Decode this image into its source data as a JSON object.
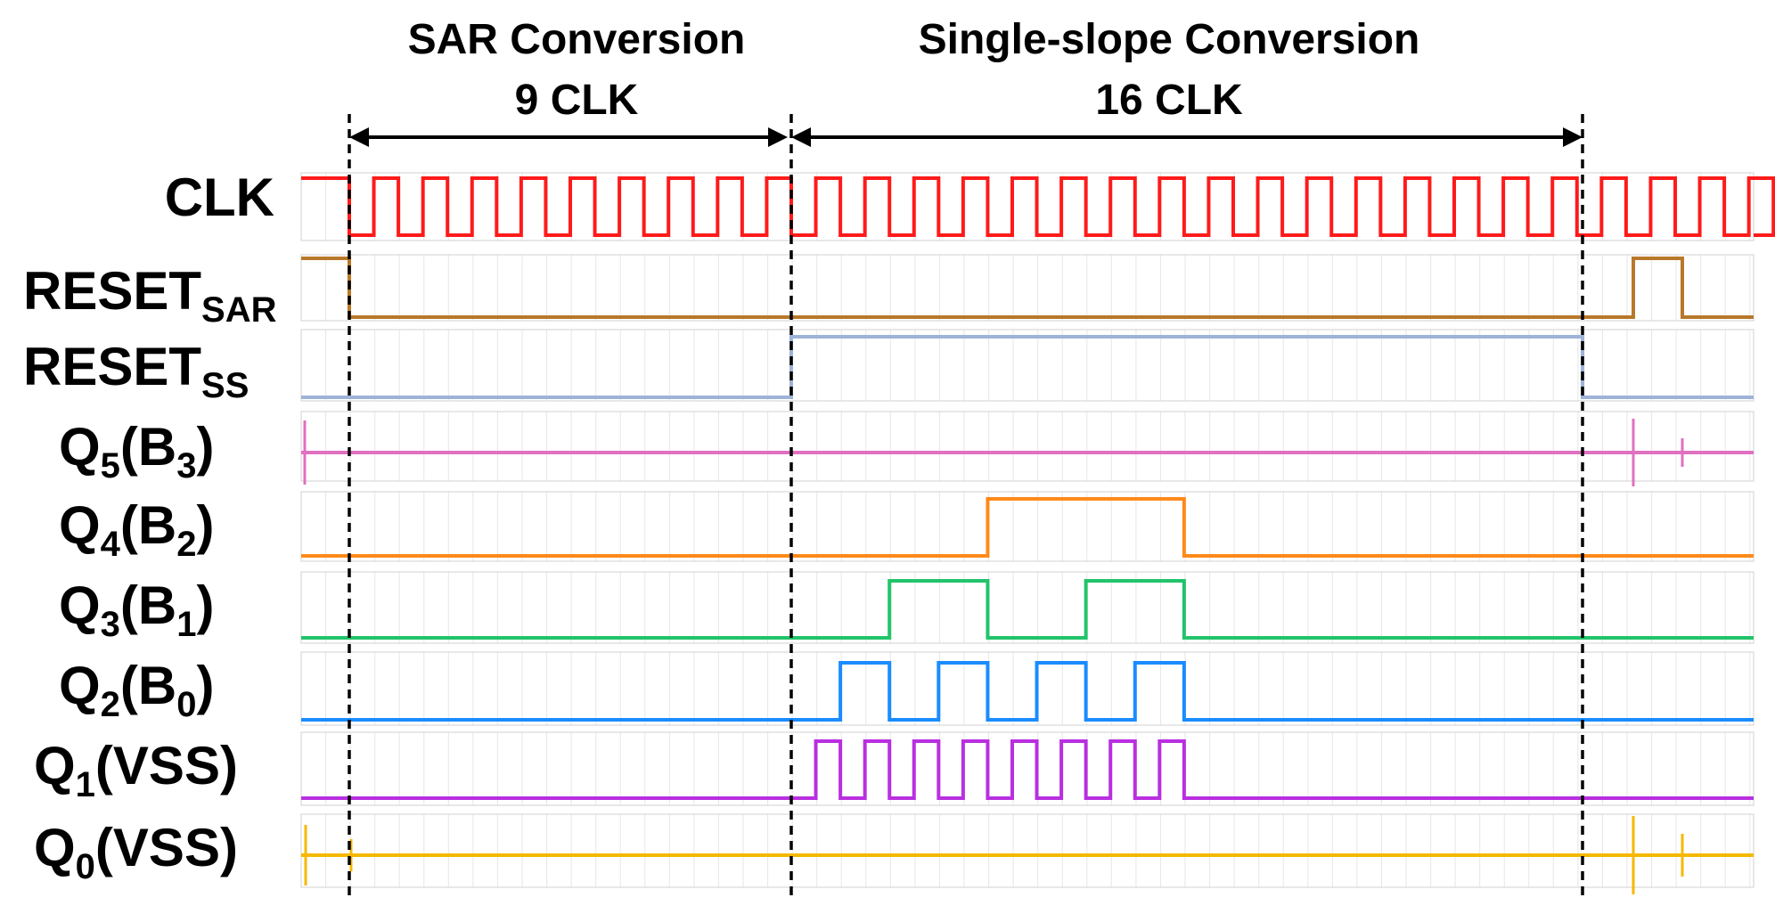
{
  "phases": [
    {
      "name": "sar",
      "title": "SAR Conversion",
      "subtitle": "9 CLK",
      "clocks": 9
    },
    {
      "name": "single-slope",
      "title": "Single-slope Conversion",
      "subtitle": "16 CLK",
      "clocks": 16
    }
  ],
  "signals": [
    {
      "key": "clk",
      "label": "CLK",
      "sub": "",
      "suffix": "",
      "color": "#ff1a1a",
      "kind": "clock"
    },
    {
      "key": "reset_sar",
      "label": "RESET",
      "sub": "SAR",
      "suffix": "",
      "color": "#b8782a",
      "kind": "levels",
      "levels": "1 during the first half clock, 0 through both conversions, pulses high once early in the next cycle",
      "summary": "high before SAR conversion; low during SAR and single-slope conversion"
    },
    {
      "key": "reset_ss",
      "label": "RESET",
      "sub": "SS",
      "suffix": "",
      "color": "#9eb3d8",
      "kind": "levels",
      "summary": "low during SAR conversion; high during single-slope conversion; low afterwards"
    },
    {
      "key": "q5",
      "label": "Q",
      "sub": "5",
      "suffix": "(B3)",
      "suffix_main": "(B",
      "suffix_sub": "3",
      "suffix_end": ")",
      "color": "#e070c0",
      "kind": "levels",
      "summary": "low throughout, with glitches after conversion"
    },
    {
      "key": "q4",
      "label": "Q",
      "sub": "4",
      "suffix_main": "(B",
      "suffix_sub": "2",
      "suffix_end": ")",
      "color": "#ff8a1a",
      "kind": "counter",
      "bit": 3
    },
    {
      "key": "q3",
      "label": "Q",
      "sub": "3",
      "suffix_main": "(B",
      "suffix_sub": "1",
      "suffix_end": ")",
      "color": "#22c46a",
      "kind": "counter",
      "bit": 2
    },
    {
      "key": "q2",
      "label": "Q",
      "sub": "2",
      "suffix_main": "(B",
      "suffix_sub": "0",
      "suffix_end": ")",
      "color": "#1a8cff",
      "kind": "counter",
      "bit": 1
    },
    {
      "key": "q1",
      "label": "Q",
      "sub": "1",
      "suffix_main": "(VSS",
      "suffix_sub": "",
      "suffix_end": ")",
      "color": "#b92fe0",
      "kind": "counter",
      "bit": 0
    },
    {
      "key": "q0",
      "label": "Q",
      "sub": "0",
      "suffix_main": "(VSS",
      "suffix_sub": "",
      "suffix_end": ")",
      "color": "#f5b800",
      "kind": "levels",
      "summary": "low throughout, with glitches after conversion"
    }
  ]
}
